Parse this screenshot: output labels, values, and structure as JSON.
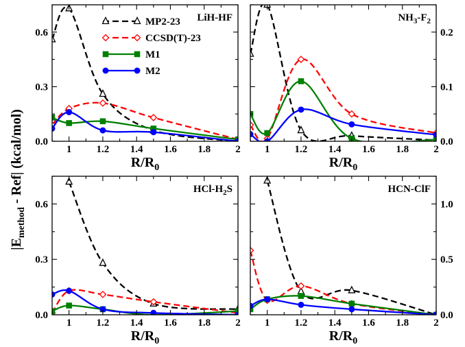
{
  "figure": {
    "ylabel_parts": [
      "|E",
      "method",
      " - Ref| (kcal/mol)"
    ],
    "xlabel_parts": [
      "R/R",
      "0"
    ]
  },
  "legend": [
    {
      "name": "MP2-23",
      "color": "#000000",
      "marker": "triangle",
      "dash": "dashed"
    },
    {
      "name": "CCSD(T)-23",
      "color": "#ff0000",
      "marker": "diamond",
      "dash": "dashed"
    },
    {
      "name": "M1",
      "color": "#008000",
      "marker": "square",
      "dash": "solid"
    },
    {
      "name": "M2",
      "color": "#0000ff",
      "marker": "circle",
      "dash": "solid"
    }
  ],
  "chart_data": [
    {
      "type": "line",
      "title_parts": [
        "LiH-HF"
      ],
      "xlabel": "R/R0",
      "xlim": [
        0.9,
        2.0
      ],
      "ylim": [
        0,
        0.75
      ],
      "x_ticks": [
        1,
        1.2,
        1.4,
        1.6,
        1.8,
        2
      ],
      "x_tick_labels": [
        "1",
        "1.2",
        "1.4",
        "1.6",
        "1.8",
        "2"
      ],
      "y_ticks": [
        0,
        0.3,
        0.6
      ],
      "y_tick_labels": [
        "0.0",
        "0.3",
        "0.6"
      ],
      "y_axis_side": "left",
      "series": [
        {
          "name": "MP2-23",
          "x": [
            0.9,
            1.0,
            1.2,
            1.5,
            2.0
          ],
          "y": [
            0.56,
            0.73,
            0.26,
            0.06,
            0.0
          ]
        },
        {
          "name": "CCSD(T)-23",
          "x": [
            0.9,
            1.0,
            1.2,
            1.5,
            2.0
          ],
          "y": [
            0.09,
            0.18,
            0.21,
            0.13,
            0.01
          ]
        },
        {
          "name": "M1",
          "x": [
            0.9,
            1.0,
            1.2,
            1.5,
            2.0
          ],
          "y": [
            0.13,
            0.1,
            0.11,
            0.07,
            0.01
          ]
        },
        {
          "name": "M2",
          "x": [
            0.9,
            1.0,
            1.2,
            1.5,
            2.0
          ],
          "y": [
            0.07,
            0.16,
            0.06,
            0.05,
            0.0
          ]
        }
      ]
    },
    {
      "type": "line",
      "title_parts": [
        "NH",
        "3",
        "-F",
        "2"
      ],
      "xlabel": "R/R0",
      "xlim": [
        0.9,
        2.0
      ],
      "ylim": [
        0,
        0.25
      ],
      "x_ticks": [
        1,
        1.2,
        1.4,
        1.6,
        1.8,
        2
      ],
      "x_tick_labels": [
        "1",
        "1.2",
        "1.4",
        "1.6",
        "1.8",
        "2"
      ],
      "y_ticks": [
        0,
        0.1,
        0.2
      ],
      "y_tick_labels": [
        "0.0",
        "0.1",
        "0.2"
      ],
      "y_axis_side": "right",
      "series": [
        {
          "name": "MP2-23",
          "x": [
            0.9,
            1.0,
            1.2,
            1.5,
            2.0
          ],
          "y": [
            0.16,
            0.25,
            0.02,
            0.01,
            0.002
          ]
        },
        {
          "name": "CCSD(T)-23",
          "x": [
            0.9,
            1.0,
            1.2,
            1.5,
            2.0
          ],
          "y": [
            0.03,
            0.005,
            0.15,
            0.05,
            0.015
          ]
        },
        {
          "name": "M1",
          "x": [
            0.9,
            1.0,
            1.2,
            1.5,
            2.0
          ],
          "y": [
            0.05,
            0.015,
            0.11,
            0.005,
            0.003
          ]
        },
        {
          "name": "M2",
          "x": [
            0.9,
            1.0,
            1.2,
            1.5,
            2.0
          ],
          "y": [
            0.013,
            0.0,
            0.058,
            0.031,
            0.012
          ]
        }
      ]
    },
    {
      "type": "line",
      "title_parts": [
        "HCl-H",
        "2",
        "S"
      ],
      "xlabel": "R/R0",
      "xlim": [
        0.9,
        2.0
      ],
      "ylim": [
        0,
        0.75
      ],
      "x_ticks": [
        1,
        1.2,
        1.4,
        1.6,
        1.8,
        2
      ],
      "x_tick_labels": [
        "1",
        "1.2",
        "1.4",
        "1.6",
        "1.8",
        "2"
      ],
      "y_ticks": [
        0,
        0.3,
        0.6
      ],
      "y_tick_labels": [
        "0.0",
        "0.3",
        "0.6"
      ],
      "y_axis_side": "left",
      "series": [
        {
          "name": "MP2-23",
          "x": [
            1.0,
            1.2,
            1.5,
            2.0
          ],
          "y": [
            0.72,
            0.28,
            0.06,
            0.03
          ]
        },
        {
          "name": "CCSD(T)-23",
          "x": [
            0.9,
            1.0,
            1.2,
            1.5,
            2.0
          ],
          "y": [
            0.01,
            0.13,
            0.11,
            0.07,
            0.01
          ]
        },
        {
          "name": "M1",
          "x": [
            0.9,
            1.0,
            1.2,
            1.5,
            2.0
          ],
          "y": [
            0.02,
            0.05,
            0.03,
            0.0,
            0.02
          ]
        },
        {
          "name": "M2",
          "x": [
            0.9,
            1.0,
            1.2,
            1.5,
            2.0
          ],
          "y": [
            0.11,
            0.13,
            0.03,
            0.01,
            0.0
          ]
        }
      ]
    },
    {
      "type": "line",
      "title_parts": [
        "HCN-ClF"
      ],
      "xlabel": "R/R0",
      "xlim": [
        0.9,
        2.0
      ],
      "ylim": [
        0,
        1.25
      ],
      "x_ticks": [
        1,
        1.2,
        1.4,
        1.6,
        1.8,
        2
      ],
      "x_tick_labels": [
        "1",
        "1.2",
        "1.4",
        "1.6",
        "1.8",
        "2"
      ],
      "y_ticks": [
        0,
        0.5,
        1.0
      ],
      "y_tick_labels": [
        "0.0",
        "0.5",
        "1.0"
      ],
      "y_axis_side": "right",
      "series": [
        {
          "name": "MP2-23",
          "x": [
            1.0,
            1.2,
            1.5,
            2.0
          ],
          "y": [
            1.21,
            0.21,
            0.22,
            0.0
          ]
        },
        {
          "name": "CCSD(T)-23",
          "x": [
            0.9,
            1.0,
            1.2,
            1.5,
            2.0
          ],
          "y": [
            0.58,
            0.13,
            0.26,
            0.1,
            0.0
          ]
        },
        {
          "name": "M1",
          "x": [
            0.9,
            1.0,
            1.2,
            1.5,
            2.0
          ],
          "y": [
            0.05,
            0.14,
            0.17,
            0.1,
            0.0
          ]
        },
        {
          "name": "M2",
          "x": [
            0.9,
            1.0,
            1.2,
            1.5,
            2.0
          ],
          "y": [
            0.08,
            0.14,
            0.09,
            0.05,
            0.0
          ]
        }
      ]
    }
  ]
}
